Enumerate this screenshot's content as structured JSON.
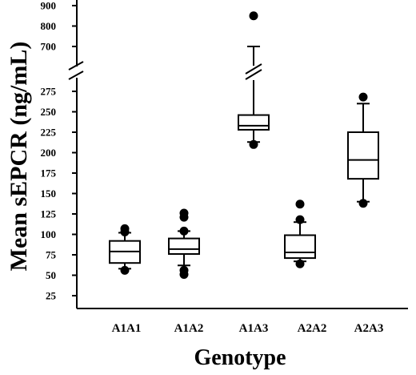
{
  "chart_data": {
    "type": "box",
    "xlabel": "Genotype",
    "ylabel": "Mean sEPCR (ng/mL)",
    "categories": [
      "A1A1",
      "A1A2",
      "A1A3",
      "A2A2",
      "A2A3"
    ],
    "y_axis_broken": true,
    "y_lower_range": [
      25,
      285
    ],
    "y_upper_range": [
      680,
      900
    ],
    "y_ticks_lower": [
      25,
      50,
      75,
      100,
      125,
      150,
      175,
      200,
      225,
      250,
      275
    ],
    "y_ticks_upper": [
      700,
      800,
      900
    ],
    "boxes": [
      {
        "category": "A1A1",
        "whisker_low": 58,
        "q1": 65,
        "median": 79,
        "q3": 92,
        "whisker_high": 102,
        "outliers": [
          56,
          103,
          107
        ]
      },
      {
        "category": "A1A2",
        "whisker_low": 62,
        "q1": 76,
        "median": 82,
        "q3": 95,
        "whisker_high": 104,
        "outliers": [
          51,
          56,
          104,
          121,
          126
        ]
      },
      {
        "category": "A1A3",
        "whisker_low": 213,
        "q1": 228,
        "median": 233,
        "q3": 246,
        "whisker_high": 700,
        "outliers": [
          210,
          850
        ]
      },
      {
        "category": "A2A2",
        "whisker_low": 67,
        "q1": 71,
        "median": 78,
        "q3": 99,
        "whisker_high": 115,
        "outliers": [
          64,
          118,
          137
        ]
      },
      {
        "category": "A2A3",
        "whisker_low": 140,
        "q1": 168,
        "median": 191,
        "q3": 225,
        "whisker_high": 260,
        "outliers": [
          138,
          268
        ]
      }
    ]
  }
}
